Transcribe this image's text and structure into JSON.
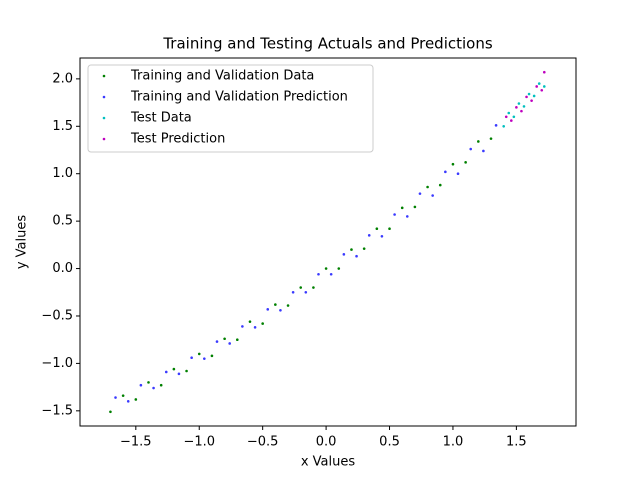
{
  "chart_data": {
    "type": "scatter",
    "title": "Training and Testing Actuals and Predictions",
    "x_label": "x Values",
    "y_label": "y Values",
    "xlim": [
      -1.94,
      1.97
    ],
    "ylim": [
      -1.66,
      2.22
    ],
    "xticks": [
      {
        "value": -1.5,
        "label": "−1.5"
      },
      {
        "value": -1.0,
        "label": "−1.0"
      },
      {
        "value": -0.5,
        "label": "−0.5"
      },
      {
        "value": 0.0,
        "label": "0.0"
      },
      0.5,
      {
        "value": 1.0,
        "label": "1.0"
      },
      1.5
    ],
    "yticks": [
      {
        "value": -1.5,
        "label": "−1.5"
      },
      {
        "value": -1.0,
        "label": "−1.0"
      },
      {
        "value": -0.5,
        "label": "−0.5"
      },
      {
        "value": 0.0,
        "label": "0.0"
      },
      0.5,
      {
        "value": 1.0,
        "label": "1.0"
      },
      1.5,
      {
        "value": 2.0,
        "label": "2.0"
      }
    ],
    "legend": "upper left",
    "series": [
      {
        "name": "Training and Validation Data",
        "color": "#008000",
        "x": [
          -1.7,
          -1.6,
          -1.5,
          -1.4,
          -1.3,
          -1.2,
          -1.1,
          -1.0,
          -0.9,
          -0.8,
          -0.7,
          -0.6,
          -0.5,
          -0.4,
          -0.3,
          -0.2,
          -0.1,
          0.0,
          0.1,
          0.2,
          0.3,
          0.4,
          0.5,
          0.6,
          0.7,
          0.8,
          0.9,
          1.0,
          1.1,
          1.2,
          1.3
        ],
        "values": [
          -1.51,
          -1.34,
          -1.38,
          -1.2,
          -1.23,
          -1.06,
          -1.08,
          -0.9,
          -0.92,
          -0.74,
          -0.75,
          -0.56,
          -0.58,
          -0.38,
          -0.39,
          -0.2,
          -0.2,
          0.0,
          0.0,
          0.2,
          0.21,
          0.42,
          0.42,
          0.64,
          0.65,
          0.86,
          0.88,
          1.1,
          1.12,
          1.34,
          1.37
        ]
      },
      {
        "name": "Training and Validation Prediction",
        "color": "#3a3aff",
        "x": [
          -1.66,
          -1.56,
          -1.46,
          -1.36,
          -1.26,
          -1.16,
          -1.06,
          -0.96,
          -0.86,
          -0.76,
          -0.66,
          -0.56,
          -0.46,
          -0.36,
          -0.26,
          -0.16,
          -0.06,
          0.04,
          0.14,
          0.24,
          0.34,
          0.44,
          0.54,
          0.64,
          0.74,
          0.84,
          0.94,
          1.04,
          1.14,
          1.24,
          1.34
        ],
        "values": [
          -1.36,
          -1.4,
          -1.23,
          -1.26,
          -1.09,
          -1.11,
          -0.94,
          -0.95,
          -0.77,
          -0.79,
          -0.61,
          -0.62,
          -0.43,
          -0.44,
          -0.25,
          -0.25,
          -0.06,
          -0.06,
          0.15,
          0.13,
          0.35,
          0.34,
          0.57,
          0.55,
          0.79,
          0.77,
          1.02,
          1.0,
          1.26,
          1.24,
          1.51
        ]
      },
      {
        "name": "Test Data",
        "color": "#00bfbf",
        "x": [
          1.4,
          1.44,
          1.48,
          1.52,
          1.56,
          1.6,
          1.64,
          1.68,
          1.72
        ],
        "values": [
          1.5,
          1.64,
          1.6,
          1.74,
          1.71,
          1.84,
          1.82,
          1.95,
          1.92
        ]
      },
      {
        "name": "Test Prediction",
        "color": "#bf00bf",
        "x": [
          1.42,
          1.46,
          1.5,
          1.54,
          1.58,
          1.62,
          1.66,
          1.7,
          1.72
        ],
        "values": [
          1.6,
          1.56,
          1.7,
          1.66,
          1.81,
          1.77,
          1.92,
          1.88,
          2.07
        ]
      }
    ]
  }
}
